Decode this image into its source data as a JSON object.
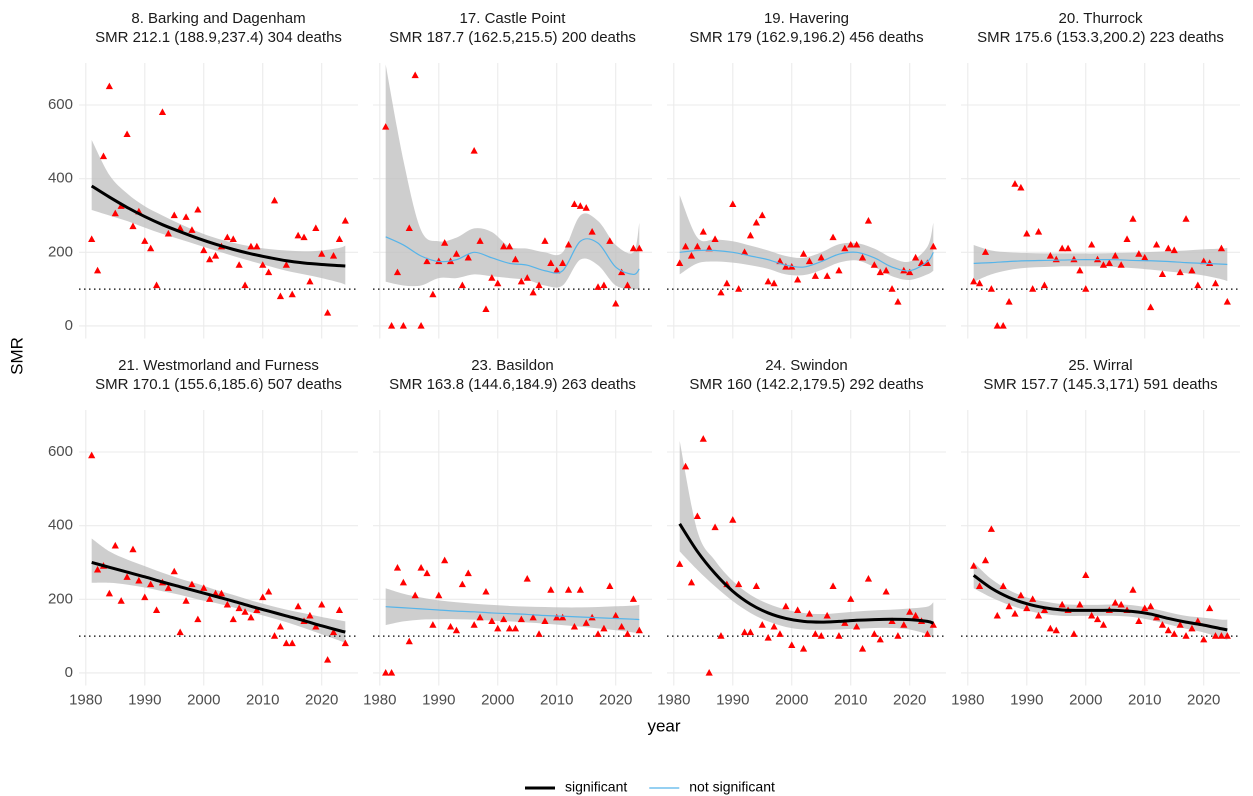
{
  "chart_data": {
    "type": "scatter",
    "xlabel": "year",
    "ylabel": "SMR",
    "xlim": [
      1978.85,
      2026.15
    ],
    "ylim": [
      -34,
      714
    ],
    "xticks": [
      1980,
      1990,
      2000,
      2010,
      2020
    ],
    "yticks": [
      0,
      200,
      400,
      600
    ],
    "grid": true,
    "refline": 100,
    "point_color": "#ff0000",
    "band_color": "#bebebe",
    "legend_position": "bottom",
    "legend": [
      {
        "name": "significant",
        "color": "#000000",
        "width": 3
      },
      {
        "name": "not significant",
        "color": "#56b4e9",
        "width": 1.2
      }
    ],
    "x": [
      1981,
      1982,
      1983,
      1984,
      1985,
      1986,
      1987,
      1988,
      1989,
      1990,
      1991,
      1992,
      1993,
      1994,
      1995,
      1996,
      1997,
      1998,
      1999,
      2000,
      2001,
      2002,
      2003,
      2004,
      2005,
      2006,
      2007,
      2008,
      2009,
      2010,
      2011,
      2012,
      2013,
      2014,
      2015,
      2016,
      2017,
      2018,
      2019,
      2020,
      2021,
      2022,
      2023,
      2024
    ],
    "smooth_x": [
      1981,
      1984,
      1987,
      1990,
      1993,
      1996,
      1999,
      2002,
      2005,
      2008,
      2011,
      2014,
      2017,
      2020,
      2023,
      2024
    ],
    "panels": [
      {
        "title": "8. Barking and Dagenham",
        "subtitle": "SMR 212.1 (188.9,237.4) 304 deaths",
        "trend": "significant",
        "values": [
          235,
          150,
          460,
          650,
          305,
          325,
          520,
          270,
          310,
          230,
          210,
          110,
          580,
          250,
          300,
          265,
          295,
          260,
          315,
          205,
          180,
          190,
          215,
          240,
          235,
          165,
          110,
          215,
          215,
          165,
          145,
          340,
          80,
          165,
          85,
          245,
          240,
          120,
          265,
          195,
          35,
          190,
          235,
          285
        ],
        "fit": [
          380,
          350,
          322,
          297,
          275,
          256,
          238,
          222,
          208,
          196,
          186,
          177,
          171,
          167,
          164,
          163
        ],
        "fit_lower": [
          315,
          300,
          285,
          267,
          250,
          235,
          220,
          205,
          190,
          176,
          163,
          150,
          140,
          130,
          118,
          112
        ],
        "fit_upper": [
          505,
          410,
          360,
          325,
          300,
          277,
          256,
          239,
          226,
          216,
          209,
          205,
          203,
          205,
          212,
          218
        ]
      },
      {
        "title": "17. Castle Point",
        "subtitle": "SMR 187.7 (162.5,215.5) 200 deaths",
        "trend": "not significant",
        "values": [
          540,
          0,
          145,
          0,
          265,
          680,
          0,
          175,
          85,
          175,
          225,
          175,
          195,
          110,
          185,
          475,
          230,
          45,
          130,
          115,
          215,
          215,
          180,
          120,
          130,
          90,
          110,
          230,
          170,
          150,
          170,
          220,
          330,
          325,
          320,
          255,
          105,
          110,
          230,
          60,
          145,
          110,
          210,
          210
        ],
        "fit": [
          242,
          220,
          190,
          175,
          180,
          200,
          185,
          170,
          165,
          150,
          150,
          230,
          225,
          160,
          140,
          155
        ],
        "fit_lower": [
          120,
          110,
          110,
          130,
          130,
          140,
          135,
          130,
          125,
          110,
          110,
          180,
          165,
          110,
          100,
          100
        ],
        "fit_upper": [
          710,
          450,
          260,
          230,
          240,
          265,
          255,
          215,
          210,
          200,
          200,
          300,
          285,
          220,
          200,
          280
        ]
      },
      {
        "title": "19. Havering",
        "subtitle": "SMR 179 (162.9,196.2) 456 deaths",
        "trend": "not significant",
        "values": [
          170,
          215,
          190,
          215,
          255,
          210,
          235,
          90,
          115,
          330,
          100,
          200,
          245,
          280,
          300,
          120,
          115,
          175,
          160,
          160,
          125,
          195,
          175,
          135,
          185,
          135,
          240,
          150,
          210,
          220,
          220,
          185,
          285,
          165,
          145,
          150,
          100,
          65,
          150,
          145,
          185,
          170,
          170,
          215
        ],
        "fit": [
          200,
          205,
          205,
          200,
          190,
          180,
          165,
          160,
          175,
          195,
          200,
          185,
          160,
          150,
          175,
          200
        ],
        "fit_lower": [
          140,
          170,
          175,
          172,
          165,
          155,
          140,
          138,
          152,
          172,
          178,
          160,
          135,
          125,
          140,
          150
        ],
        "fit_upper": [
          355,
          240,
          235,
          230,
          218,
          205,
          190,
          185,
          200,
          222,
          225,
          210,
          185,
          175,
          215,
          280
        ]
      },
      {
        "title": "20. Thurrock",
        "subtitle": "SMR 175.6 (153.3,200.2) 223 deaths",
        "trend": "not significant",
        "values": [
          120,
          115,
          200,
          100,
          0,
          0,
          65,
          385,
          375,
          250,
          100,
          255,
          110,
          190,
          180,
          210,
          210,
          180,
          150,
          100,
          220,
          180,
          165,
          170,
          190,
          165,
          235,
          290,
          195,
          185,
          50,
          220,
          140,
          210,
          205,
          145,
          290,
          150,
          110,
          175,
          170,
          115,
          210,
          65
        ],
        "fit": [
          170,
          172,
          175,
          177,
          178,
          179,
          180,
          180,
          180,
          178,
          177,
          175,
          172,
          170,
          168,
          167
        ],
        "fit_lower": [
          120,
          140,
          152,
          158,
          160,
          162,
          162,
          162,
          160,
          157,
          153,
          148,
          143,
          137,
          127,
          122
        ],
        "fit_upper": [
          220,
          205,
          200,
          198,
          197,
          197,
          197,
          197,
          198,
          199,
          201,
          203,
          205,
          208,
          210,
          212
        ]
      },
      {
        "title": "21. Westmorland and Furness",
        "subtitle": "SMR 170.1 (155.6,185.6) 507 deaths",
        "trend": "significant",
        "values": [
          590,
          280,
          290,
          215,
          345,
          195,
          260,
          335,
          250,
          205,
          240,
          170,
          245,
          230,
          275,
          110,
          195,
          240,
          145,
          230,
          200,
          215,
          215,
          185,
          145,
          175,
          165,
          150,
          170,
          205,
          220,
          100,
          125,
          80,
          80,
          180,
          140,
          155,
          125,
          185,
          35,
          110,
          170,
          80
        ],
        "fit": [
          300,
          287,
          274,
          261,
          247,
          234,
          221,
          208,
          195,
          181,
          168,
          155,
          142,
          128,
          115,
          111
        ],
        "fit_lower": [
          245,
          245,
          240,
          232,
          222,
          212,
          200,
          190,
          178,
          165,
          152,
          138,
          122,
          105,
          88,
          82
        ],
        "fit_upper": [
          365,
          330,
          308,
          290,
          272,
          256,
          242,
          226,
          212,
          197,
          184,
          172,
          162,
          152,
          143,
          140
        ]
      },
      {
        "title": "23. Basildon",
        "subtitle": "SMR 163.8 (144.6,184.9) 263 deaths",
        "trend": "not significant",
        "values": [
          0,
          0,
          285,
          245,
          85,
          210,
          285,
          270,
          130,
          210,
          305,
          125,
          115,
          240,
          270,
          130,
          150,
          220,
          140,
          120,
          145,
          120,
          120,
          145,
          255,
          150,
          105,
          140,
          225,
          150,
          150,
          225,
          125,
          225,
          135,
          150,
          105,
          120,
          235,
          155,
          125,
          105,
          200,
          115
        ],
        "fit": [
          180,
          177,
          174,
          171,
          168,
          166,
          163,
          161,
          159,
          156,
          154,
          152,
          150,
          148,
          146,
          145
        ],
        "fit_lower": [
          130,
          140,
          145,
          146,
          146,
          145,
          142,
          140,
          137,
          134,
          130,
          126,
          121,
          116,
          110,
          108
        ],
        "fit_upper": [
          230,
          215,
          205,
          197,
          192,
          188,
          185,
          182,
          180,
          179,
          178,
          178,
          179,
          181,
          183,
          185
        ]
      },
      {
        "title": "24. Swindon",
        "subtitle": "SMR 160 (142.2,179.5) 292 deaths",
        "trend": "significant",
        "values": [
          295,
          560,
          245,
          425,
          635,
          0,
          395,
          100,
          240,
          415,
          240,
          110,
          110,
          235,
          130,
          95,
          125,
          105,
          180,
          75,
          170,
          65,
          160,
          105,
          100,
          155,
          235,
          100,
          135,
          200,
          125,
          65,
          255,
          105,
          90,
          220,
          140,
          100,
          130,
          165,
          155,
          140,
          105,
          130
        ],
        "fit": [
          405,
          330,
          270,
          222,
          187,
          163,
          148,
          140,
          138,
          140,
          143,
          145,
          146,
          145,
          140,
          135
        ],
        "fit_lower": [
          330,
          280,
          235,
          195,
          163,
          140,
          125,
          118,
          117,
          118,
          120,
          122,
          122,
          118,
          105,
          95
        ],
        "fit_upper": [
          630,
          385,
          305,
          250,
          212,
          188,
          172,
          163,
          160,
          163,
          167,
          170,
          172,
          175,
          180,
          192
        ]
      },
      {
        "title": "25. Wirral",
        "subtitle": "SMR 157.7 (145.3,171) 591 deaths",
        "trend": "significant",
        "values": [
          290,
          235,
          305,
          390,
          155,
          235,
          180,
          160,
          210,
          175,
          200,
          155,
          170,
          120,
          115,
          185,
          170,
          105,
          185,
          265,
          155,
          145,
          130,
          170,
          190,
          185,
          170,
          225,
          140,
          175,
          180,
          150,
          130,
          115,
          105,
          130,
          100,
          120,
          140,
          90,
          175,
          100,
          100,
          100
        ],
        "fit": [
          265,
          230,
          205,
          188,
          177,
          171,
          170,
          170,
          170,
          167,
          160,
          148,
          138,
          130,
          120,
          117
        ],
        "fit_lower": [
          230,
          205,
          185,
          170,
          160,
          155,
          155,
          155,
          155,
          152,
          144,
          132,
          120,
          110,
          95,
          90
        ],
        "fit_upper": [
          300,
          255,
          225,
          205,
          194,
          187,
          185,
          185,
          186,
          184,
          176,
          165,
          155,
          150,
          145,
          145
        ]
      }
    ]
  }
}
